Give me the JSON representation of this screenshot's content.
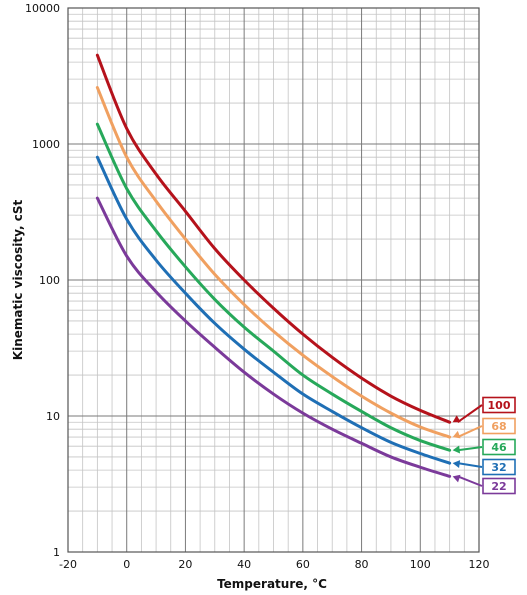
{
  "chart_data": {
    "type": "line",
    "xlabel": "Temperature, °C",
    "ylabel": "Kinematic viscosity, cSt",
    "xlim": [
      -20,
      120
    ],
    "ylim": [
      1,
      10000
    ],
    "yscale": "log",
    "grid": true,
    "x_ticks": [
      -20,
      0,
      20,
      40,
      60,
      80,
      100,
      120
    ],
    "x_tick_labels": [
      "-20",
      "0",
      "20",
      "40",
      "60",
      "80",
      "100",
      "120"
    ],
    "y_ticks": [
      1,
      10,
      100,
      1000,
      10000
    ],
    "y_tick_labels": [
      "1",
      "10",
      "100",
      "1000",
      "10000"
    ],
    "x": [
      -10,
      0,
      10,
      20,
      30,
      40,
      50,
      60,
      70,
      80,
      90,
      100,
      110
    ],
    "series": [
      {
        "name": "100",
        "color": "#b5121b",
        "values": [
          4500,
          1300,
          600,
          320,
          170,
          100,
          62,
          40,
          27,
          19,
          14,
          11,
          9
        ]
      },
      {
        "name": "68",
        "color": "#f0a060",
        "values": [
          2600,
          800,
          380,
          200,
          110,
          66,
          42,
          28,
          19.5,
          14,
          10.5,
          8.3,
          7
        ]
      },
      {
        "name": "46",
        "color": "#27a85a",
        "values": [
          1400,
          470,
          230,
          125,
          72,
          45,
          30,
          20,
          14.5,
          10.8,
          8.2,
          6.6,
          5.6
        ]
      },
      {
        "name": "32",
        "color": "#1f6fb5",
        "values": [
          800,
          280,
          140,
          80,
          48,
          31,
          21,
          14.5,
          10.8,
          8.2,
          6.4,
          5.3,
          4.5
        ]
      },
      {
        "name": "22",
        "color": "#7b3a9a",
        "values": [
          400,
          150,
          82,
          50,
          32,
          21,
          14.5,
          10.5,
          8,
          6.3,
          5,
          4.2,
          3.6
        ]
      }
    ]
  }
}
